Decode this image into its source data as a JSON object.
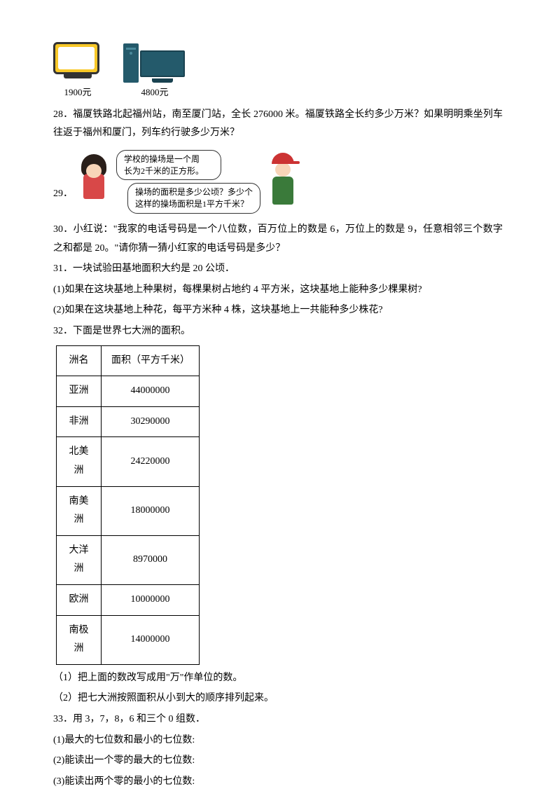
{
  "products": {
    "tv_price": "1900元",
    "pc_price": "4800元"
  },
  "q28": {
    "text": "28．福厦铁路北起福州站，南至厦门站，全长 276000 米。福厦铁路全长约多少万米？如果明明乘坐列车往返于福州和厦门，列车约行驶多少万米？"
  },
  "q29": {
    "label": "29．",
    "bubble1_line1": "学校的操场是一个周",
    "bubble1_line2": "长为2千米的正方形。",
    "bubble2_line1": "操场的面积是多少公顷？多少个",
    "bubble2_line2": "这样的操场面积是1平方千米？"
  },
  "q30": {
    "text": "30．小红说：\"我家的电话号码是一个八位数，百万位上的数是 6，万位上的数是 9，任意相邻三个数字之和都是 20。\"请你猜一猜小红家的电话号码是多少？"
  },
  "q31": {
    "main": "31．一块试验田基地面积大约是 20 公顷．",
    "sub1": "(1)如果在这块基地上种果树，每棵果树占地约 4 平方米，这块基地上能种多少棵果树?",
    "sub2": "(2)如果在这块基地上种花，每平方米种 4 株，这块基地上一共能种多少株花?"
  },
  "q32": {
    "main": "32．下面是世界七大洲的面积。",
    "table": {
      "header_col1": "洲名",
      "header_col2": "面积（平方千米）",
      "rows": [
        {
          "name": "亚洲",
          "area": "44000000"
        },
        {
          "name": "非洲",
          "area": "30290000"
        },
        {
          "name": "北美洲",
          "area": "24220000"
        },
        {
          "name": "南美洲",
          "area": "18000000"
        },
        {
          "name": "大洋洲",
          "area": "8970000"
        },
        {
          "name": "欧洲",
          "area": "10000000"
        },
        {
          "name": "南极洲",
          "area": "14000000"
        }
      ]
    },
    "sub1": "（1）把上面的数改写成用\"万\"作单位的数。",
    "sub2": "（2）把七大洲按照面积从小到大的顺序排列起来。"
  },
  "q33": {
    "main": "33．用 3，7，8，6 和三个 0 组数．",
    "sub1": "(1)最大的七位数和最小的七位数:",
    "sub2": "(2)能读出一个零的最大的七位数:",
    "sub3": "(3)能读出两个零的最小的七位数:"
  }
}
